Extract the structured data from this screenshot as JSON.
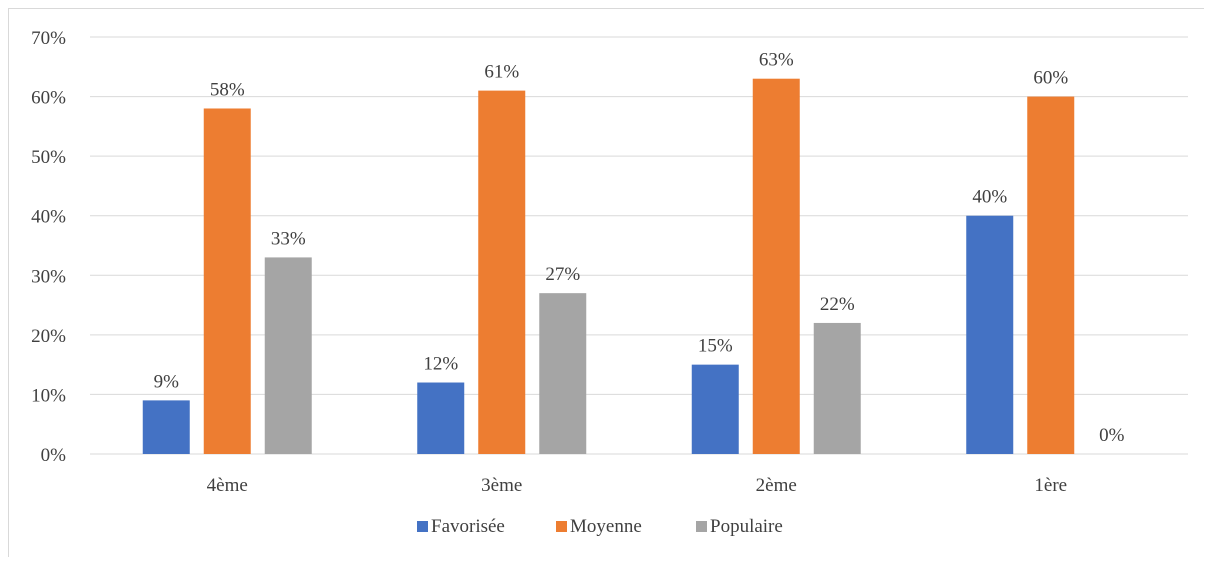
{
  "chart_data": {
    "type": "bar",
    "categories": [
      "4ème",
      "3ème",
      "2ème",
      "1ère"
    ],
    "series": [
      {
        "name": "Favorisée",
        "values": [
          9,
          12,
          15,
          40
        ],
        "labels": [
          "9%",
          "12%",
          "15%",
          "40%"
        ],
        "color": "#4472c4"
      },
      {
        "name": "Moyenne",
        "values": [
          58,
          61,
          63,
          60
        ],
        "labels": [
          "58%",
          "61%",
          "63%",
          "60%"
        ],
        "color": "#ed7d31"
      },
      {
        "name": "Populaire",
        "values": [
          33,
          27,
          22,
          0
        ],
        "labels": [
          "33%",
          "27%",
          "22%",
          "0%"
        ],
        "color": "#a5a5a5"
      }
    ],
    "ylim": [
      0,
      70
    ],
    "yticks": [
      0,
      10,
      20,
      30,
      40,
      50,
      60,
      70
    ],
    "ytick_labels": [
      "0%",
      "10%",
      "20%",
      "30%",
      "40%",
      "50%",
      "60%",
      "70%"
    ],
    "title": "",
    "xlabel": "",
    "ylabel": "",
    "grid": true,
    "legend_position": "bottom",
    "gridline_color": "#d9d9d9"
  }
}
